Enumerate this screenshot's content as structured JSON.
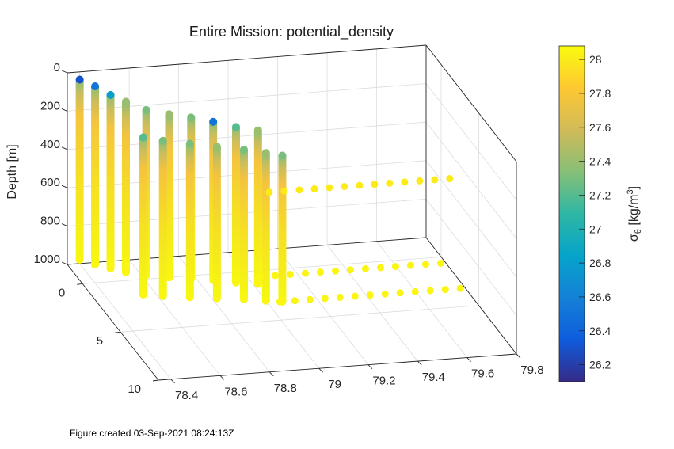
{
  "chart_data": {
    "type": "scatter",
    "title": "Entire Mission: potential_density",
    "zlabel": "Depth [m]",
    "colorbar_label": "σ_θ [kg/m³]",
    "colorbar_label_parts": {
      "sigma": "σ",
      "sub": "θ",
      "units_pre": " [kg/m",
      "units_sup": "3",
      "units_post": "]"
    },
    "x_ticks": [
      "78.4",
      "78.6",
      "78.8",
      "79",
      "79.2",
      "79.4",
      "79.6",
      "79.8"
    ],
    "y_ticks": [
      "0",
      "5",
      "10"
    ],
    "z_ticks": [
      "0",
      "200",
      "400",
      "600",
      "800",
      "1000"
    ],
    "colorbar_ticks": [
      "26.2",
      "26.4",
      "26.6",
      "26.8",
      "27",
      "27.2",
      "27.4",
      "27.6",
      "27.8",
      "28"
    ],
    "xlim": [
      78.35,
      79.8
    ],
    "ylim": [
      -2,
      10
    ],
    "zlim": [
      0,
      1000
    ],
    "clim": [
      26.1,
      28.08
    ],
    "grid": true,
    "colormap": "parula",
    "colormap_stops": [
      "#352a87",
      "#0f5cdd",
      "#1481d6",
      "#06a4ca",
      "#2eb7a4",
      "#87bf77",
      "#d1bb59",
      "#fec832",
      "#f9fb0e"
    ],
    "profiles": [
      {
        "x": 78.4,
        "y": -2.0,
        "top": 40,
        "bottom": 980,
        "surface": 26.3
      },
      {
        "x": 78.45,
        "y": -1.6,
        "top": 60,
        "bottom": 990,
        "surface": 26.5
      },
      {
        "x": 78.5,
        "y": -1.2,
        "top": 90,
        "bottom": 995,
        "surface": 26.8
      },
      {
        "x": 78.55,
        "y": -0.8,
        "top": 110,
        "bottom": 1000,
        "surface": 27.4
      },
      {
        "x": 78.62,
        "y": -0.4,
        "top": 140,
        "bottom": 1000,
        "surface": 27.3
      },
      {
        "x": 78.7,
        "y": 0.0,
        "top": 150,
        "bottom": 1000,
        "surface": 27.4
      },
      {
        "x": 78.78,
        "y": 0.3,
        "top": 160,
        "bottom": 1000,
        "surface": 27.3
      },
      {
        "x": 78.86,
        "y": 0.6,
        "top": 175,
        "bottom": 1000,
        "surface": 26.5
      },
      {
        "x": 78.94,
        "y": 1.0,
        "top": 190,
        "bottom": 1000,
        "surface": 27.2
      },
      {
        "x": 79.02,
        "y": 1.3,
        "top": 200,
        "bottom": 1000,
        "surface": 27.4
      },
      {
        "x": 78.55,
        "y": 1.5,
        "top": 180,
        "bottom": 1000,
        "surface": 27.2
      },
      {
        "x": 78.62,
        "y": 1.8,
        "top": 190,
        "bottom": 1000,
        "surface": 27.3
      },
      {
        "x": 78.72,
        "y": 2.1,
        "top": 200,
        "bottom": 1000,
        "surface": 27.3
      },
      {
        "x": 78.82,
        "y": 2.4,
        "top": 210,
        "bottom": 1000,
        "surface": 27.4
      },
      {
        "x": 78.92,
        "y": 2.7,
        "top": 220,
        "bottom": 1000,
        "surface": 27.3
      },
      {
        "x": 79.0,
        "y": 3.0,
        "top": 230,
        "bottom": 1000,
        "surface": 27.4
      },
      {
        "x": 79.06,
        "y": 3.2,
        "top": 240,
        "bottom": 1000,
        "surface": 27.3
      }
    ],
    "surface_tracks": [
      {
        "y": 1.8,
        "z": 500,
        "x_start": 79.05,
        "x_end": 79.78,
        "count": 13,
        "value": 28.0
      },
      {
        "y": 0.6,
        "z": 1000,
        "x_start": 79.05,
        "x_end": 79.78,
        "count": 13,
        "value": 28.05
      },
      {
        "y": 3.2,
        "z": 1000,
        "x_start": 79.05,
        "x_end": 79.78,
        "count": 13,
        "value": 28.05
      }
    ]
  },
  "footer": {
    "text": "Figure created 03-Sep-2021 08:24:13Z"
  }
}
